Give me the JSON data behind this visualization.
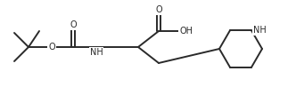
{
  "bg_color": "#ffffff",
  "line_color": "#2a2a2a",
  "line_width": 1.4,
  "font_size": 7.0,
  "fig_width": 3.32,
  "fig_height": 1.07,
  "dpi": 100,
  "atoms": {
    "O_carbamate": "O",
    "O_ester": "O",
    "O_cooh_dbl": "O",
    "OH_cooh": "OH",
    "NH_carbamate": "NH",
    "NH_pip": "NH"
  },
  "layout": {
    "xlim": [
      0,
      332
    ],
    "ylim": [
      0,
      107
    ]
  }
}
